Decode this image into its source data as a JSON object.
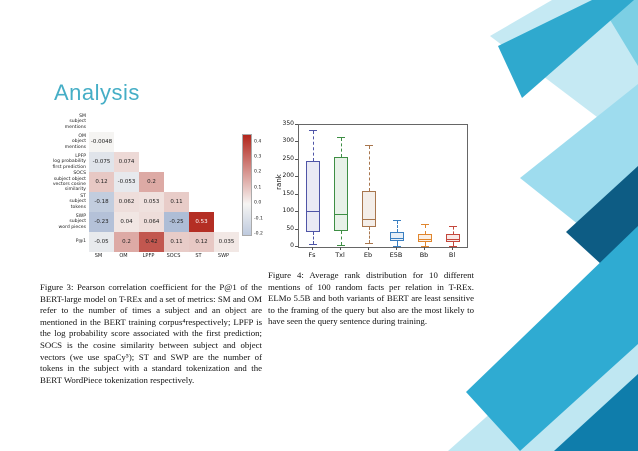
{
  "slide": {
    "title": "Analysis",
    "accent_color": "#45aec6"
  },
  "figure3": {
    "caption": "Figure 3: Pearson correlation coefficient for the P@1 of the BERT-large model on T-REx and a set of metrics: SM and OM refer to the number of times a subject and an object are mentioned in the BERT training corpus⁴respectively; LPFP is the log probability score associated with the first prediction; SOCS is the cosine similarity between subject and object vectors (we use spaCy⁵); ST and SWP are the number of tokens in the subject with a standard tokenization and the BERT WordPiece tokenization respectively."
  },
  "figure4": {
    "caption": "Figure 4: Average rank distribution for 10 different mentions of 100 random facts per relation in T-REx. ELMo 5.5B and both variants of BERT are least sensitive to the framing of the query but also are the most likely to have seen the query sentence during training."
  },
  "chart_data": [
    {
      "type": "heatmap",
      "title": "",
      "columns": [
        "SM",
        "OM",
        "LPFP",
        "SOCS",
        "ST",
        "SWP"
      ],
      "rows": [
        {
          "label": "SM\nsubject\nmentions",
          "values": [
            null,
            null,
            null,
            null,
            null,
            null
          ]
        },
        {
          "label": "OM\nobject\nmentions",
          "values": [
            "-0.0048",
            null,
            null,
            null,
            null,
            null
          ]
        },
        {
          "label": "LPFP\nlog probability\nfirst prediction",
          "values": [
            "-0.075",
            "0.074",
            null,
            null,
            null,
            null
          ]
        },
        {
          "label": "SOCS\nsubject object\nvectors cosine\nsimilarity",
          "values": [
            "0.12",
            "-0.053",
            "0.2",
            null,
            null,
            null
          ]
        },
        {
          "label": "ST\nsubject\ntokens",
          "values": [
            "-0.18",
            "0.062",
            "0.053",
            "0.11",
            null,
            null
          ]
        },
        {
          "label": "SWP\nsubject\nword pieces",
          "values": [
            "-0.23",
            "0.04",
            "0.064",
            "-0.25",
            "0.53",
            null
          ]
        },
        {
          "label": "P@1",
          "values": [
            "-0.05",
            "0.2",
            "0.42",
            "0.11",
            "0.12",
            "0.035"
          ]
        }
      ],
      "colorbar": {
        "vmax": 0.45,
        "vmin": -0.2,
        "ticks": [
          "0.4",
          "0.3",
          "0.2",
          "0.1",
          "0.0",
          "-0.1",
          "-0.2"
        ]
      }
    },
    {
      "type": "box",
      "title": "",
      "ylabel": "rank",
      "ylim": [
        0,
        350
      ],
      "yticks": [
        "0",
        "50",
        "100",
        "150",
        "200",
        "250",
        "300",
        "350"
      ],
      "categories": [
        "Fs",
        "Txl",
        "Eb",
        "E5B",
        "Bb",
        "Bl"
      ],
      "series": [
        {
          "name": "Fs",
          "color": "#4f55a7",
          "whisker_low": 8,
          "q1": 42,
          "median": 103,
          "q3": 248,
          "whisker_high": 333
        },
        {
          "name": "Txl",
          "color": "#3e8e44",
          "whisker_low": 7,
          "q1": 45,
          "median": 96,
          "q3": 258,
          "whisker_high": 312
        },
        {
          "name": "Eb",
          "color": "#a8764e",
          "whisker_low": 12,
          "q1": 58,
          "median": 80,
          "q3": 162,
          "whisker_high": 290
        },
        {
          "name": "E5B",
          "color": "#3a7fc1",
          "whisker_low": 4,
          "q1": 18,
          "median": 27,
          "q3": 44,
          "whisker_high": 74
        },
        {
          "name": "Bb",
          "color": "#e0862e",
          "whisker_low": 3,
          "q1": 14,
          "median": 24,
          "q3": 38,
          "whisker_high": 64
        },
        {
          "name": "Bl",
          "color": "#c4473c",
          "whisker_low": 3,
          "q1": 13,
          "median": 22,
          "q3": 36,
          "whisker_high": 58
        }
      ]
    }
  ]
}
